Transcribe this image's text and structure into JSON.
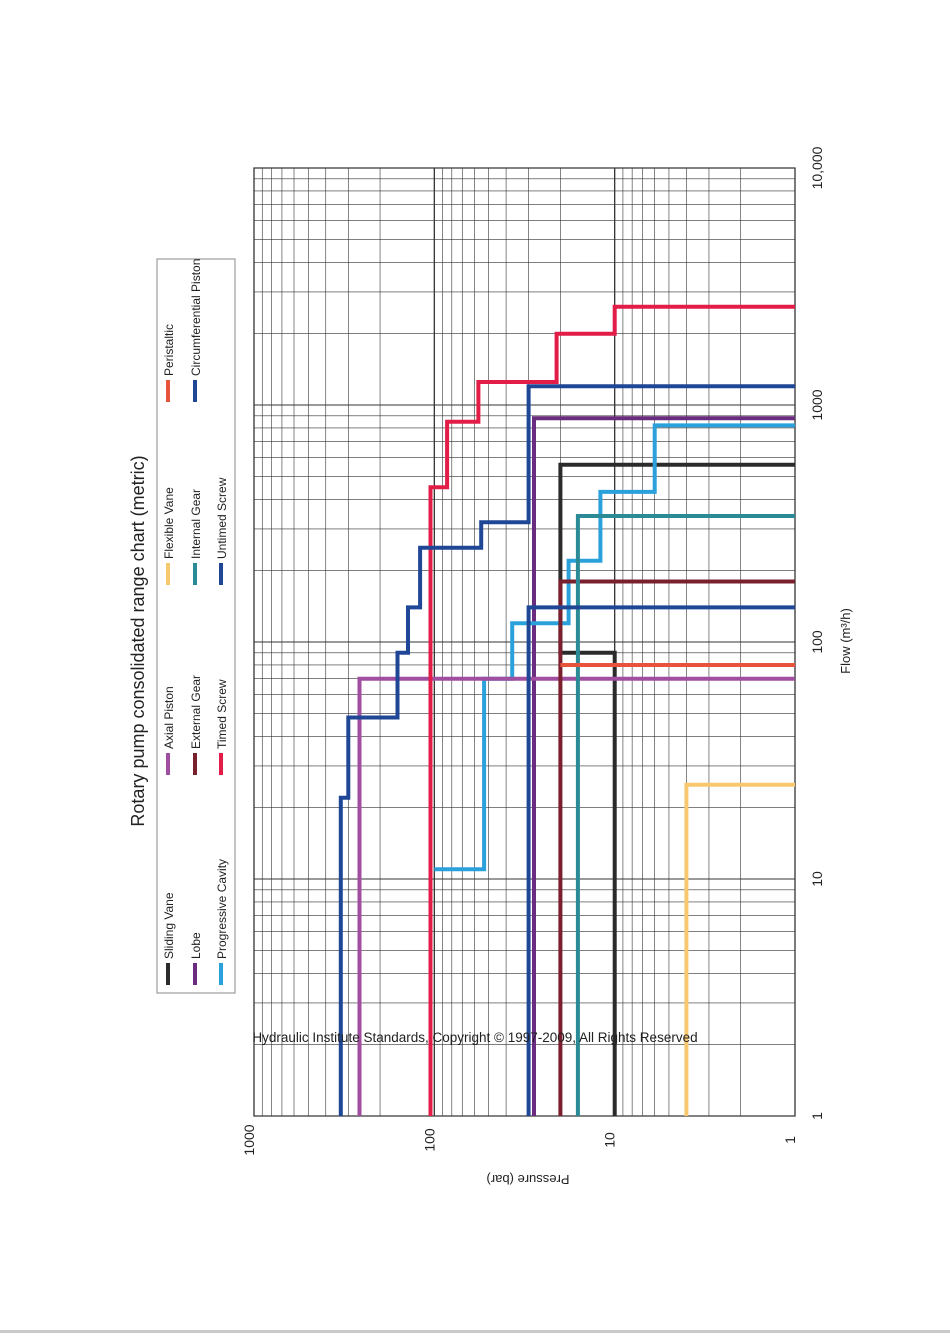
{
  "chart_data": {
    "type": "line",
    "title": "Rotary pump consolidated range chart (metric)",
    "xlabel": "Flow (m³/h)",
    "ylabel": "Pressure (bar)",
    "x_scale": "log",
    "y_scale": "log",
    "xlim": [
      1,
      10000
    ],
    "ylim": [
      1,
      1000
    ],
    "x_ticks": [
      {
        "v": 1,
        "label": "1"
      },
      {
        "v": 10,
        "label": "10"
      },
      {
        "v": 100,
        "label": "100"
      },
      {
        "v": 1000,
        "label": "1000"
      },
      {
        "v": 10000,
        "label": "10,000"
      }
    ],
    "y_ticks": [
      {
        "v": 1000,
        "label": "1000"
      },
      {
        "v": 100,
        "label": "100"
      },
      {
        "v": 10,
        "label": "10"
      },
      {
        "v": 1,
        "label": "1"
      }
    ],
    "grid": true,
    "orientation": "rotated 90 degrees counter-clockwise",
    "series": [
      {
        "name": "Sliding Vane",
        "color": "#2b2b2b",
        "points": [
          [
            1,
            10
          ],
          [
            90,
            10
          ],
          [
            90,
            20
          ],
          [
            560,
            20
          ],
          [
            560,
            1
          ]
        ]
      },
      {
        "name": "Lobe",
        "color": "#6a2c7e",
        "points": [
          [
            1,
            28
          ],
          [
            880,
            28
          ],
          [
            880,
            1
          ]
        ]
      },
      {
        "name": "Progressive Cavity",
        "color": "#2ba1dc",
        "points": [
          [
            11,
            100
          ],
          [
            11,
            53
          ],
          [
            70,
            53
          ],
          [
            70,
            37
          ],
          [
            120,
            37
          ],
          [
            120,
            18
          ],
          [
            220,
            18
          ],
          [
            220,
            12
          ],
          [
            430,
            12
          ],
          [
            430,
            6
          ],
          [
            820,
            6
          ],
          [
            820,
            1
          ]
        ]
      },
      {
        "name": "Axial Piston",
        "color": "#a04ea0",
        "points": [
          [
            1,
            260
          ],
          [
            70,
            260
          ],
          [
            70,
            1
          ]
        ]
      },
      {
        "name": "External Gear",
        "color": "#7a1f2e",
        "points": [
          [
            1,
            20
          ],
          [
            180,
            20
          ],
          [
            180,
            1
          ]
        ]
      },
      {
        "name": "Timed Screw",
        "color": "#e21d47",
        "points": [
          [
            1,
            105
          ],
          [
            450,
            105
          ],
          [
            450,
            85
          ],
          [
            850,
            85
          ],
          [
            850,
            57
          ],
          [
            1250,
            57
          ],
          [
            1250,
            21
          ],
          [
            2000,
            21
          ],
          [
            2000,
            10
          ],
          [
            2600,
            10
          ],
          [
            2600,
            1
          ]
        ]
      },
      {
        "name": "Flexible Vane",
        "color": "#f7c86e",
        "points": [
          [
            1,
            4
          ],
          [
            25,
            4
          ],
          [
            25,
            1
          ]
        ]
      },
      {
        "name": "Internal Gear",
        "color": "#2a8a96",
        "points": [
          [
            1,
            16
          ],
          [
            340,
            16
          ],
          [
            340,
            1
          ]
        ]
      },
      {
        "name": "Untimed Screw",
        "color": "#1f4796",
        "points": [
          [
            1,
            30
          ],
          [
            140,
            30
          ],
          [
            140,
            1
          ]
        ]
      },
      {
        "name": "Peristaltic",
        "color": "#e8533c",
        "points": [
          [
            80,
            20
          ],
          [
            80,
            1
          ]
        ]
      },
      {
        "name": "Circumferential Piston",
        "color": "#1f4796",
        "points": [
          [
            1,
            330
          ],
          [
            22,
            330
          ],
          [
            22,
            300
          ],
          [
            48,
            300
          ],
          [
            48,
            160
          ],
          [
            90,
            160
          ],
          [
            90,
            140
          ],
          [
            140,
            140
          ],
          [
            140,
            120
          ],
          [
            250,
            120
          ],
          [
            250,
            55
          ],
          [
            320,
            55
          ],
          [
            320,
            30
          ],
          [
            1200,
            30
          ],
          [
            1200,
            1
          ]
        ]
      }
    ]
  },
  "legend": {
    "items": [
      {
        "label": "Sliding Vane",
        "color": "#2b2b2b"
      },
      {
        "label": "Lobe",
        "color": "#6a2c7e"
      },
      {
        "label": "Progressive Cavity",
        "color": "#2ba1dc"
      },
      {
        "label": "Axial Piston",
        "color": "#a04ea0"
      },
      {
        "label": "External Gear",
        "color": "#7a1f2e"
      },
      {
        "label": "Timed Screw",
        "color": "#e21d47"
      },
      {
        "label": "Flexible Vane",
        "color": "#f7c86e"
      },
      {
        "label": "Internal Gear",
        "color": "#2a8a96"
      },
      {
        "label": "Untimed Screw",
        "color": "#1f4796"
      },
      {
        "label": "Peristaltic",
        "color": "#e8533c"
      },
      {
        "label": "Circumferential Piston",
        "color": "#1f4796"
      }
    ]
  },
  "footer": "Hydraulic Institute Standards, Copyright © 1997-2009, All Rights Reserved"
}
